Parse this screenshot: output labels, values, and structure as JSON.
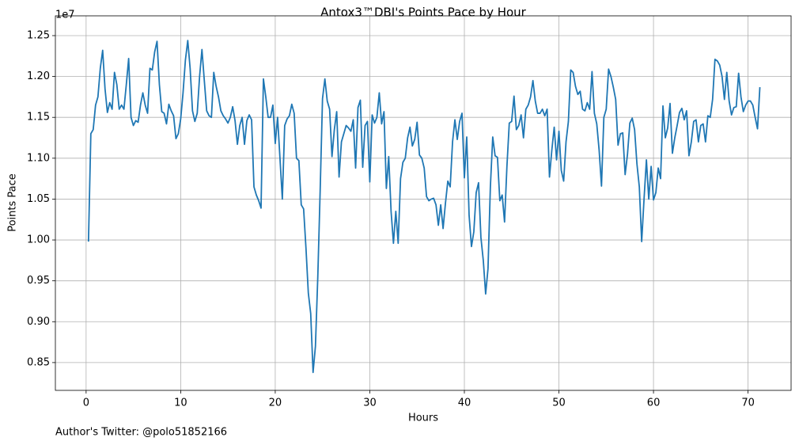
{
  "chart_data": {
    "type": "line",
    "title": "Antox3™DBI's Points Pace by Hour",
    "xlabel": "Hours",
    "ylabel": "Points Pace",
    "y_offset_text": "1e7",
    "footer": "Author's Twitter: @polo51852166",
    "color": "#1f77b4",
    "grid": true,
    "xlim": [
      -3.25,
      74.55
    ],
    "ylim": [
      0.816,
      1.2742
    ],
    "xticks": [
      0,
      10,
      20,
      30,
      40,
      50,
      60,
      70
    ],
    "yticks": [
      {
        "value": 0.85,
        "label": "0.85"
      },
      {
        "value": 0.9,
        "label": "0.90"
      },
      {
        "value": 0.95,
        "label": "0.95"
      },
      {
        "value": 1.0,
        "label": "1.00"
      },
      {
        "value": 1.05,
        "label": "1.05"
      },
      {
        "value": 1.1,
        "label": "1.10"
      },
      {
        "value": 1.15,
        "label": "1.15"
      },
      {
        "value": 1.2,
        "label": "1.20"
      },
      {
        "value": 1.25,
        "label": "1.25"
      }
    ],
    "x": [
      0.25,
      0.5,
      0.75,
      1,
      1.25,
      1.5,
      1.75,
      2,
      2.25,
      2.5,
      2.75,
      3,
      3.25,
      3.5,
      3.75,
      4,
      4.25,
      4.5,
      4.75,
      5,
      5.25,
      5.5,
      5.75,
      6,
      6.25,
      6.5,
      6.75,
      7,
      7.25,
      7.5,
      7.75,
      8,
      8.25,
      8.5,
      8.75,
      9,
      9.25,
      9.5,
      9.75,
      10,
      10.25,
      10.5,
      10.75,
      11,
      11.25,
      11.5,
      11.75,
      12,
      12.25,
      12.5,
      12.75,
      13,
      13.25,
      13.5,
      13.75,
      14,
      14.25,
      14.5,
      14.75,
      15,
      15.25,
      15.5,
      15.75,
      16,
      16.25,
      16.5,
      16.75,
      17,
      17.25,
      17.5,
      17.75,
      18,
      18.25,
      18.5,
      18.75,
      19,
      19.25,
      19.5,
      19.75,
      20,
      20.25,
      20.5,
      20.75,
      21,
      21.25,
      21.5,
      21.75,
      22,
      22.25,
      22.5,
      22.75,
      23,
      23.25,
      23.5,
      23.75,
      24,
      24.25,
      24.5,
      24.75,
      25,
      25.25,
      25.5,
      25.75,
      26,
      26.25,
      26.5,
      26.75,
      27,
      27.25,
      27.5,
      27.75,
      28,
      28.25,
      28.5,
      28.75,
      29,
      29.25,
      29.5,
      29.75,
      30,
      30.25,
      30.5,
      30.75,
      31,
      31.25,
      31.5,
      31.75,
      32,
      32.25,
      32.5,
      32.75,
      33,
      33.25,
      33.5,
      33.75,
      34,
      34.25,
      34.5,
      34.75,
      35,
      35.25,
      35.5,
      35.75,
      36,
      36.25,
      36.5,
      36.75,
      37,
      37.25,
      37.5,
      37.75,
      38,
      38.25,
      38.5,
      38.75,
      39,
      39.25,
      39.5,
      39.75,
      40,
      40.25,
      40.5,
      40.75,
      41,
      41.25,
      41.5,
      41.75,
      42,
      42.25,
      42.5,
      42.75,
      43,
      43.25,
      43.5,
      43.75,
      44,
      44.25,
      44.5,
      44.75,
      45,
      45.25,
      45.5,
      45.75,
      46,
      46.25,
      46.5,
      46.75,
      47,
      47.25,
      47.5,
      47.75,
      48,
      48.25,
      48.5,
      48.75,
      49,
      49.25,
      49.5,
      49.75,
      50,
      50.25,
      50.5,
      50.75,
      51,
      51.25,
      51.5,
      51.75,
      52,
      52.25,
      52.5,
      52.75,
      53,
      53.25,
      53.5,
      53.75,
      54,
      54.25,
      54.5,
      54.75,
      55,
      55.25,
      55.5,
      55.75,
      56,
      56.25,
      56.5,
      56.75,
      57,
      57.25,
      57.5,
      57.75,
      58,
      58.25,
      58.5,
      58.75,
      59,
      59.25,
      59.5,
      59.75,
      60,
      60.25,
      60.5,
      60.75,
      61,
      61.25,
      61.5,
      61.75,
      62,
      62.25,
      62.5,
      62.75,
      63,
      63.25,
      63.5,
      63.75,
      64,
      64.25,
      64.5,
      64.75,
      65,
      65.25,
      65.5,
      65.75,
      66,
      66.25,
      66.5,
      66.75,
      67,
      67.25,
      67.5,
      67.75,
      68,
      68.25,
      68.5,
      68.75,
      69,
      69.25,
      69.5,
      69.75,
      70,
      70.25,
      70.5,
      70.75,
      71,
      71.25
    ],
    "values": [
      0.998,
      1.13,
      1.135,
      1.165,
      1.175,
      1.21,
      1.232,
      1.185,
      1.156,
      1.168,
      1.16,
      1.205,
      1.19,
      1.16,
      1.165,
      1.16,
      1.19,
      1.222,
      1.15,
      1.14,
      1.146,
      1.144,
      1.165,
      1.18,
      1.165,
      1.155,
      1.21,
      1.208,
      1.23,
      1.243,
      1.19,
      1.157,
      1.155,
      1.142,
      1.166,
      1.158,
      1.152,
      1.124,
      1.13,
      1.148,
      1.18,
      1.22,
      1.244,
      1.21,
      1.158,
      1.145,
      1.155,
      1.2,
      1.233,
      1.195,
      1.158,
      1.152,
      1.15,
      1.205,
      1.188,
      1.175,
      1.158,
      1.152,
      1.148,
      1.143,
      1.15,
      1.163,
      1.146,
      1.117,
      1.14,
      1.15,
      1.117,
      1.146,
      1.153,
      1.147,
      1.065,
      1.055,
      1.048,
      1.039,
      1.197,
      1.175,
      1.15,
      1.15,
      1.165,
      1.118,
      1.15,
      1.1,
      1.05,
      1.14,
      1.148,
      1.152,
      1.166,
      1.155,
      1.1,
      1.097,
      1.043,
      1.038,
      0.99,
      0.935,
      0.91,
      0.838,
      0.87,
      0.955,
      1.06,
      1.173,
      1.197,
      1.17,
      1.16,
      1.102,
      1.135,
      1.157,
      1.077,
      1.12,
      1.13,
      1.14,
      1.137,
      1.133,
      1.147,
      1.088,
      1.162,
      1.171,
      1.089,
      1.14,
      1.145,
      1.071,
      1.153,
      1.143,
      1.15,
      1.18,
      1.142,
      1.157,
      1.063,
      1.102,
      1.035,
      0.996,
      1.035,
      0.996,
      1.075,
      1.095,
      1.1,
      1.125,
      1.138,
      1.115,
      1.123,
      1.144,
      1.104,
      1.1,
      1.088,
      1.053,
      1.048,
      1.05,
      1.051,
      1.043,
      1.018,
      1.043,
      1.014,
      1.045,
      1.072,
      1.065,
      1.12,
      1.147,
      1.123,
      1.145,
      1.155,
      1.076,
      1.126,
      1.03,
      0.992,
      1.01,
      1.058,
      1.07,
      1.003,
      0.975,
      0.934,
      0.965,
      1.065,
      1.126,
      1.103,
      1.101,
      1.048,
      1.055,
      1.022,
      1.09,
      1.143,
      1.145,
      1.176,
      1.135,
      1.14,
      1.153,
      1.125,
      1.16,
      1.165,
      1.175,
      1.195,
      1.17,
      1.155,
      1.155,
      1.16,
      1.152,
      1.16,
      1.077,
      1.11,
      1.138,
      1.098,
      1.133,
      1.085,
      1.072,
      1.12,
      1.145,
      1.208,
      1.205,
      1.188,
      1.178,
      1.182,
      1.16,
      1.158,
      1.168,
      1.16,
      1.206,
      1.155,
      1.142,
      1.11,
      1.066,
      1.15,
      1.16,
      1.209,
      1.2,
      1.187,
      1.172,
      1.116,
      1.13,
      1.131,
      1.08,
      1.105,
      1.143,
      1.149,
      1.135,
      1.093,
      1.065,
      0.998,
      1.05,
      1.098,
      1.05,
      1.09,
      1.049,
      1.058,
      1.088,
      1.075,
      1.164,
      1.125,
      1.137,
      1.167,
      1.106,
      1.125,
      1.14,
      1.156,
      1.161,
      1.147,
      1.158,
      1.103,
      1.12,
      1.145,
      1.147,
      1.12,
      1.14,
      1.142,
      1.12,
      1.152,
      1.15,
      1.172,
      1.221,
      1.219,
      1.214,
      1.2,
      1.172,
      1.205,
      1.17,
      1.153,
      1.162,
      1.163,
      1.204,
      1.175,
      1.157,
      1.165,
      1.17,
      1.17,
      1.165,
      1.15,
      1.136,
      1.187
    ]
  }
}
